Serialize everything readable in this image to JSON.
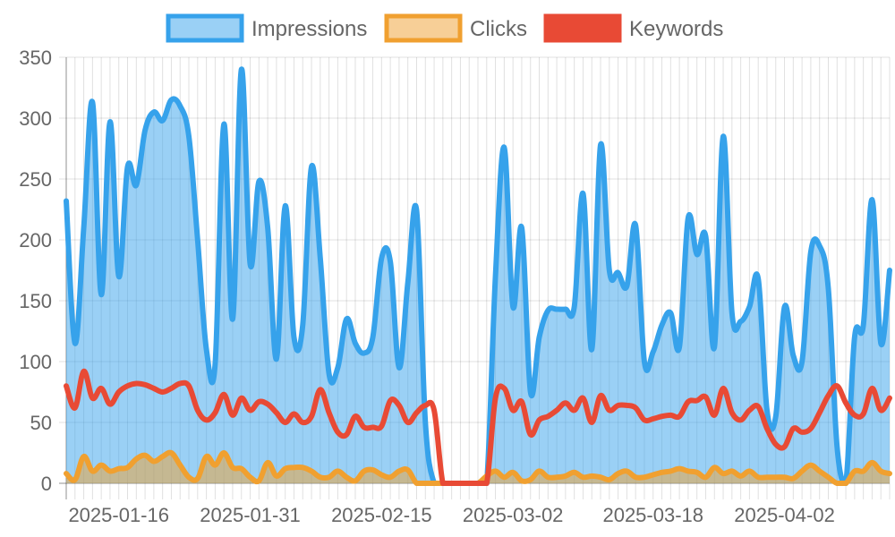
{
  "chart_data": {
    "type": "area",
    "x_start": "2025-01-10",
    "x_ticks": [
      "2025-01-16",
      "2025-01-31",
      "2025-02-15",
      "2025-03-02",
      "2025-03-18",
      "2025-04-02"
    ],
    "ylim": [
      0,
      350
    ],
    "y_ticks": [
      0,
      50,
      100,
      150,
      200,
      250,
      300,
      350
    ],
    "grid": true,
    "legend_position": "top",
    "series": [
      {
        "name": "Impressions",
        "color": "#36a2eb",
        "fill": "rgba(54,162,235,0.5)",
        "filled": true,
        "values": [
          232,
          115,
          210,
          313,
          155,
          297,
          170,
          260,
          245,
          290,
          305,
          298,
          315,
          310,
          285,
          200,
          110,
          98,
          295,
          135,
          340,
          180,
          248,
          210,
          102,
          228,
          120,
          130,
          260,
          185,
          90,
          95,
          135,
          115,
          107,
          120,
          185,
          182,
          95,
          165,
          224,
          50,
          0,
          0,
          0,
          0,
          0,
          0,
          0,
          170,
          276,
          145,
          210,
          75,
          120,
          142,
          143,
          143,
          145,
          238,
          110,
          278,
          175,
          173,
          162,
          212,
          100,
          108,
          130,
          140,
          112,
          218,
          188,
          203,
          112,
          285,
          140,
          133,
          145,
          168,
          60,
          55,
          145,
          105,
          100,
          190,
          195,
          160,
          30,
          0,
          120,
          130,
          233,
          115,
          175
        ]
      },
      {
        "name": "Clicks",
        "color": "#f0a030",
        "fill": "rgba(240,160,48,0.5)",
        "filled": true,
        "values": [
          8,
          3,
          22,
          10,
          15,
          10,
          12,
          13,
          20,
          23,
          18,
          22,
          25,
          15,
          5,
          4,
          22,
          15,
          25,
          13,
          12,
          5,
          2,
          17,
          6,
          12,
          13,
          13,
          10,
          5,
          5,
          10,
          5,
          2,
          10,
          11,
          7,
          5,
          10,
          11,
          0,
          0,
          0,
          0,
          0,
          0,
          0,
          0,
          6,
          10,
          5,
          9,
          2,
          3,
          10,
          5,
          5,
          6,
          9,
          5,
          6,
          5,
          3,
          8,
          10,
          5,
          5,
          7,
          9,
          10,
          12,
          10,
          9,
          5,
          13,
          8,
          10,
          6,
          10,
          5,
          5,
          5,
          5,
          4,
          10,
          15,
          10,
          5,
          0,
          0,
          10,
          10,
          17,
          10,
          8
        ]
      },
      {
        "name": "Keywords",
        "color": "#e84a35",
        "fill": "rgba(232,74,53,0.5)",
        "filled": false,
        "values": [
          80,
          62,
          92,
          70,
          78,
          65,
          75,
          80,
          82,
          81,
          78,
          75,
          78,
          82,
          80,
          60,
          52,
          58,
          73,
          56,
          70,
          60,
          67,
          65,
          58,
          50,
          57,
          50,
          55,
          77,
          58,
          42,
          40,
          55,
          46,
          46,
          47,
          68,
          64,
          50,
          58,
          64,
          60,
          0,
          0,
          0,
          0,
          0,
          0,
          70,
          78,
          60,
          67,
          40,
          52,
          55,
          60,
          66,
          60,
          70,
          50,
          72,
          60,
          64,
          64,
          62,
          52,
          53,
          55,
          56,
          55,
          67,
          68,
          71,
          56,
          78,
          58,
          52,
          60,
          63,
          45,
          32,
          30,
          45,
          42,
          45,
          58,
          72,
          80,
          66,
          56,
          57,
          78,
          60,
          70
        ]
      }
    ]
  }
}
